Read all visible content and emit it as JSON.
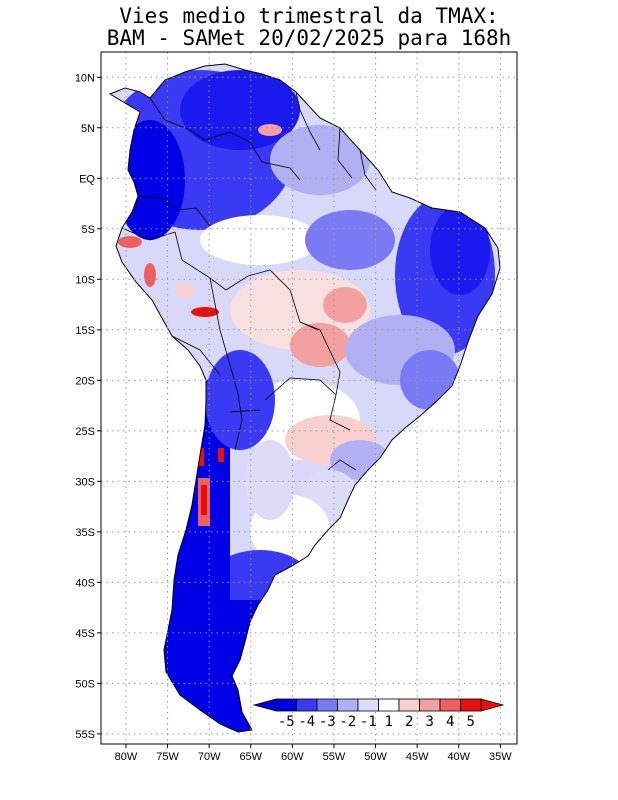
{
  "title": {
    "line1": "Vies medio trimestral da TMAX:",
    "line2": "BAM - SAMet 20/02/2025  para 168h"
  },
  "axes": {
    "lat_labels": [
      "10N",
      "5N",
      "EQ",
      "5S",
      "10S",
      "15S",
      "20S",
      "25S",
      "30S",
      "35S",
      "40S",
      "45S",
      "50S",
      "55S"
    ],
    "lat_values": [
      10,
      5,
      0,
      -5,
      -10,
      -15,
      -20,
      -25,
      -30,
      -35,
      -40,
      -45,
      -50,
      -55
    ],
    "lon_labels": [
      "80W",
      "75W",
      "70W",
      "65W",
      "60W",
      "55W",
      "50W",
      "45W",
      "40W",
      "35W"
    ],
    "lon_values": [
      -80,
      -75,
      -70,
      -65,
      -60,
      -55,
      -50,
      -45,
      -40,
      -35
    ],
    "lon_range": [
      -83,
      -33
    ],
    "lat_range": [
      -56,
      12.5
    ],
    "grid": "dotted"
  },
  "colorbar": {
    "labels": [
      "-5",
      "-4",
      "-3",
      "-2",
      "-1",
      "1",
      "2",
      "3",
      "4",
      "5"
    ],
    "colors": [
      "#0000e6",
      "#3a3af5",
      "#7a7af5",
      "#b0b0f2",
      "#dcdcf8",
      "#ffffff",
      "#f8d0d0",
      "#f2a0a0",
      "#ee6060",
      "#e61010"
    ],
    "under_color": "#0000e6",
    "over_color": "#e61010"
  },
  "colors": {
    "ocean": "#ffffff",
    "border": "#000000",
    "grid": "#9a9a9a"
  }
}
